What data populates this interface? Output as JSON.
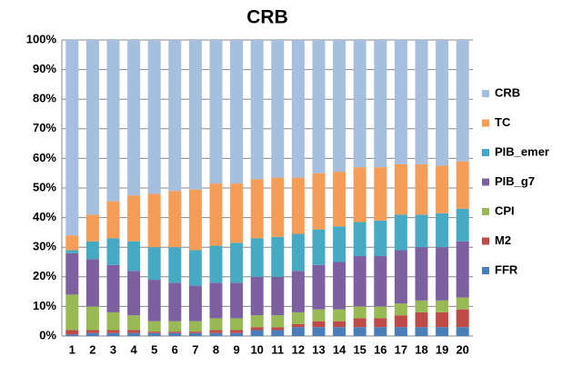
{
  "chart_data": {
    "type": "stacked_bar_100",
    "title": "CRB",
    "categories": [
      "1",
      "2",
      "3",
      "4",
      "5",
      "6",
      "7",
      "8",
      "9",
      "10",
      "11",
      "12",
      "13",
      "14",
      "15",
      "16",
      "17",
      "18",
      "19",
      "20"
    ],
    "series": [
      {
        "name": "FFR",
        "color": "#4a7ebb",
        "values": [
          0.5,
          1,
          1,
          1,
          1,
          1,
          1,
          1,
          1,
          2,
          2,
          3,
          3,
          3,
          3,
          3,
          3,
          3,
          3,
          3
        ]
      },
      {
        "name": "M2",
        "color": "#be4b48",
        "values": [
          1.5,
          1,
          1,
          1,
          0.5,
          0.5,
          0.5,
          1,
          1,
          1,
          1,
          1,
          2,
          2,
          3,
          3,
          4,
          5,
          5,
          6
        ]
      },
      {
        "name": "CPI",
        "color": "#98b954",
        "values": [
          12,
          8,
          6,
          5,
          3.5,
          3.5,
          3.5,
          4,
          4,
          4,
          4,
          4,
          4,
          4,
          4,
          4,
          4,
          4,
          4,
          4
        ]
      },
      {
        "name": "PIB_g7",
        "color": "#7d60a0",
        "values": [
          14,
          16,
          16,
          15,
          14,
          13,
          12,
          12,
          12,
          13,
          13,
          14,
          15,
          16,
          17,
          17,
          18,
          18,
          18,
          19
        ]
      },
      {
        "name": "PIB_emer",
        "color": "#46aac5",
        "values": [
          1,
          6,
          9,
          10,
          11,
          12,
          12,
          12.5,
          13.5,
          13,
          13.5,
          12.5,
          12,
          12,
          11.5,
          12,
          12,
          11,
          11.5,
          11
        ]
      },
      {
        "name": "TC",
        "color": "#f59d56",
        "values": [
          5,
          9,
          12.5,
          15.5,
          18,
          19,
          20.5,
          21,
          20,
          20,
          20,
          19,
          19,
          18.5,
          18.5,
          18,
          17,
          17,
          16,
          16
        ]
      },
      {
        "name": "CRB",
        "color": "#a7bfde",
        "values": [
          66,
          59,
          54.5,
          52.5,
          52,
          51,
          50.5,
          48.5,
          48.5,
          47,
          46.5,
          46.5,
          45,
          44.5,
          43,
          43,
          42,
          42,
          42.5,
          41
        ]
      }
    ],
    "ylim": [
      0,
      100
    ],
    "yticks": [
      {
        "value": 0,
        "label": "0%"
      },
      {
        "value": 10,
        "label": "10%"
      },
      {
        "value": 20,
        "label": "20%"
      },
      {
        "value": 30,
        "label": "30%"
      },
      {
        "value": 40,
        "label": "40%"
      },
      {
        "value": 50,
        "label": "50%"
      },
      {
        "value": 60,
        "label": "60%"
      },
      {
        "value": 70,
        "label": "70%"
      },
      {
        "value": 80,
        "label": "80%"
      },
      {
        "value": 90,
        "label": "90%"
      },
      {
        "value": 100,
        "label": "100%"
      }
    ],
    "grid": true,
    "legend": "right"
  }
}
